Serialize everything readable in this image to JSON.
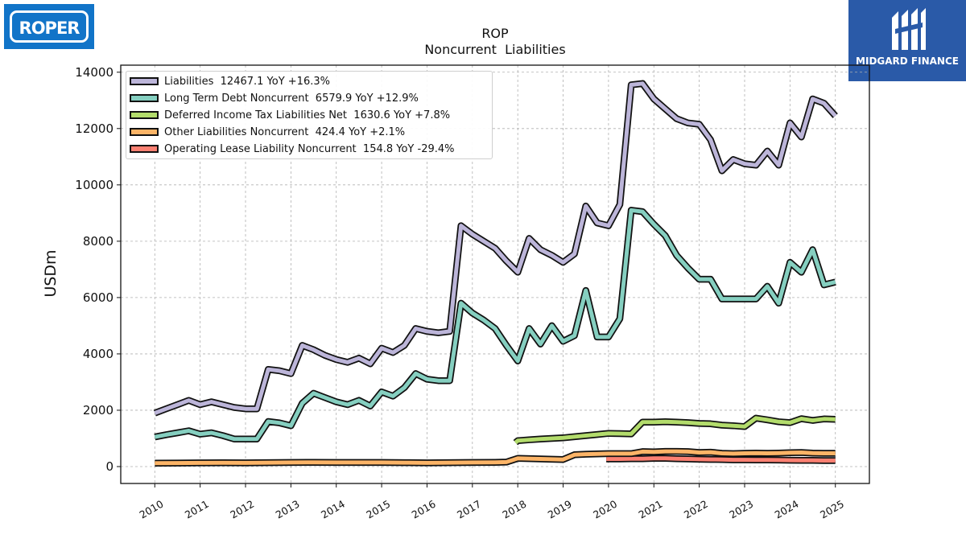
{
  "logos": {
    "left_text": "ROPER",
    "right_text": "MIDGARD FINANCE"
  },
  "colors": {
    "liabilities": "#bcb5d9",
    "long_term_debt": "#85cfc0",
    "deferred_tax": "#b3dc6c",
    "other_liabilities": "#fcb467",
    "operating_lease": "#fb8072",
    "outline": "#111111",
    "logo_left_bg": "#1174c8",
    "logo_right_bg": "#2a5aa8"
  },
  "chart_data": {
    "type": "line",
    "title": "ROP",
    "subtitle": "Noncurrent  Liabilities",
    "ylabel": "USDm",
    "xlabel": "",
    "ylim": [
      -600,
      14250
    ],
    "xlim": [
      2009.25,
      2025.75
    ],
    "yticks": [
      0,
      2000,
      4000,
      6000,
      8000,
      10000,
      12000,
      14000
    ],
    "xticks": [
      "2010",
      "2011",
      "2012",
      "2013",
      "2014",
      "2015",
      "2016",
      "2017",
      "2018",
      "2019",
      "2020",
      "2021",
      "2022",
      "2023",
      "2024",
      "2025"
    ],
    "grid": true,
    "legend_position": "top-left",
    "series": [
      {
        "name": "Liabilities",
        "legend_label": "Liabilities  12467.1 YoY +16.3%",
        "color_key": "liabilities",
        "x": [
          2010.0,
          2010.25,
          2010.5,
          2010.75,
          2011.0,
          2011.25,
          2011.5,
          2011.75,
          2012.0,
          2012.25,
          2012.5,
          2012.75,
          2013.0,
          2013.25,
          2013.5,
          2013.75,
          2014.0,
          2014.25,
          2014.5,
          2014.75,
          2015.0,
          2015.25,
          2015.5,
          2015.75,
          2016.0,
          2016.25,
          2016.5,
          2016.75,
          2017.0,
          2017.25,
          2017.5,
          2017.75,
          2018.0,
          2018.25,
          2018.5,
          2018.75,
          2019.0,
          2019.25,
          2019.5,
          2019.75,
          2020.0,
          2020.25,
          2020.5,
          2020.75,
          2021.0,
          2021.25,
          2021.5,
          2021.75,
          2022.0,
          2022.25,
          2022.5,
          2022.75,
          2023.0,
          2023.25,
          2023.5,
          2023.75,
          2024.0,
          2024.25,
          2024.5,
          2024.75,
          2025.0
        ],
        "y": [
          1900,
          2050,
          2200,
          2350,
          2200,
          2300,
          2200,
          2100,
          2050,
          2050,
          3450,
          3400,
          3300,
          4300,
          4150,
          3950,
          3800,
          3700,
          3850,
          3650,
          4200,
          4050,
          4300,
          4900,
          4800,
          4750,
          4800,
          8550,
          8250,
          8000,
          7750,
          7300,
          6900,
          8100,
          7700,
          7500,
          7250,
          7550,
          9250,
          8650,
          8550,
          9300,
          13550,
          13600,
          13050,
          12700,
          12350,
          12200,
          12150,
          11600,
          10500,
          10900,
          10750,
          10700,
          11200,
          10700,
          12200,
          11700,
          13050,
          12900,
          12450
        ]
      },
      {
        "name": "Long Term Debt Noncurrent",
        "legend_label": "Long Term Debt Noncurrent  6579.9 YoY +12.9%",
        "color_key": "long_term_debt",
        "x": [
          2010.0,
          2010.25,
          2010.5,
          2010.75,
          2011.0,
          2011.25,
          2011.5,
          2011.75,
          2012.0,
          2012.25,
          2012.5,
          2012.75,
          2013.0,
          2013.25,
          2013.5,
          2013.75,
          2014.0,
          2014.25,
          2014.5,
          2014.75,
          2015.0,
          2015.25,
          2015.5,
          2015.75,
          2016.0,
          2016.25,
          2016.5,
          2016.75,
          2017.0,
          2017.25,
          2017.5,
          2017.75,
          2018.0,
          2018.25,
          2018.5,
          2018.75,
          2019.0,
          2019.25,
          2019.5,
          2019.75,
          2020.0,
          2020.25,
          2020.5,
          2020.75,
          2021.0,
          2021.25,
          2021.5,
          2021.75,
          2022.0,
          2022.25,
          2022.5,
          2022.75,
          2023.0,
          2023.25,
          2023.5,
          2023.75,
          2024.0,
          2024.25,
          2024.5,
          2024.75,
          2025.0
        ],
        "y": [
          1050,
          1130,
          1200,
          1270,
          1150,
          1200,
          1100,
          980,
          980,
          980,
          1600,
          1550,
          1450,
          2250,
          2600,
          2450,
          2300,
          2200,
          2350,
          2150,
          2650,
          2500,
          2800,
          3300,
          3100,
          3050,
          3050,
          5800,
          5450,
          5200,
          4900,
          4300,
          3750,
          4900,
          4350,
          5000,
          4450,
          4650,
          6250,
          4600,
          4600,
          5250,
          9100,
          9050,
          8600,
          8200,
          7500,
          7050,
          6650,
          6650,
          5950,
          5950,
          5950,
          5950,
          6400,
          5800,
          7250,
          6900,
          7700,
          6450,
          6550
        ]
      },
      {
        "name": "Deferred Income Tax Liabilities Net",
        "legend_label": "Deferred Income Tax Liabilities Net  1630.6 YoY +7.8%",
        "color_key": "deferred_tax",
        "x": [
          2017.95,
          2018.0,
          2018.25,
          2018.5,
          2018.75,
          2019.0,
          2019.25,
          2019.5,
          2019.75,
          2020.0,
          2020.25,
          2020.5,
          2020.75,
          2021.0,
          2021.25,
          2021.5,
          2021.75,
          2022.0,
          2022.25,
          2022.5,
          2022.75,
          2023.0,
          2023.25,
          2023.5,
          2023.75,
          2024.0,
          2024.25,
          2024.5,
          2024.75,
          2025.0
        ],
        "y": [
          850,
          920,
          950,
          980,
          1000,
          1020,
          1060,
          1100,
          1140,
          1180,
          1170,
          1160,
          1580,
          1580,
          1590,
          1580,
          1560,
          1530,
          1520,
          1470,
          1450,
          1420,
          1720,
          1660,
          1590,
          1560,
          1700,
          1640,
          1690,
          1680
        ]
      },
      {
        "name": "Other Liabilities Noncurrent",
        "legend_label": "Other Liabilities Noncurrent  424.4 YoY +2.1%",
        "color_key": "other_liabilities",
        "x": [
          2010.0,
          2010.5,
          2011.0,
          2011.5,
          2012.0,
          2012.5,
          2013.0,
          2013.5,
          2014.0,
          2014.5,
          2015.0,
          2015.5,
          2016.0,
          2016.5,
          2017.0,
          2017.5,
          2017.75,
          2018.0,
          2018.5,
          2019.0,
          2019.25,
          2019.5,
          2019.75,
          2020.0,
          2020.25,
          2020.5,
          2020.75,
          2021.0,
          2021.25,
          2021.5,
          2021.75,
          2022.0,
          2022.25,
          2022.5,
          2022.75,
          2023.0,
          2023.25,
          2023.5,
          2023.75,
          2024.0,
          2024.25,
          2024.5,
          2024.75,
          2025.0
        ],
        "y": [
          120,
          125,
          130,
          135,
          130,
          140,
          145,
          150,
          145,
          145,
          145,
          140,
          130,
          140,
          145,
          150,
          160,
          290,
          270,
          250,
          420,
          440,
          450,
          460,
          460,
          460,
          530,
          520,
          540,
          540,
          530,
          500,
          510,
          470,
          460,
          470,
          480,
          470,
          480,
          490,
          500,
          480,
          470,
          470
        ]
      },
      {
        "name": "Operating Lease Liability Noncurrent",
        "legend_label": "Operating Lease Liability Noncurrent  154.8 YoY -29.4%",
        "color_key": "operating_lease",
        "x": [
          2019.95,
          2020.25,
          2020.5,
          2020.75,
          2021.0,
          2021.25,
          2021.5,
          2021.75,
          2022.0,
          2022.25,
          2022.5,
          2022.75,
          2023.0,
          2023.25,
          2023.5,
          2023.75,
          2024.0,
          2024.25,
          2024.5,
          2024.75,
          2025.0
        ],
        "y": [
          270,
          270,
          280,
          280,
          290,
          290,
          280,
          270,
          260,
          255,
          250,
          240,
          240,
          235,
          235,
          230,
          225,
          220,
          220,
          215,
          215
        ]
      }
    ]
  }
}
